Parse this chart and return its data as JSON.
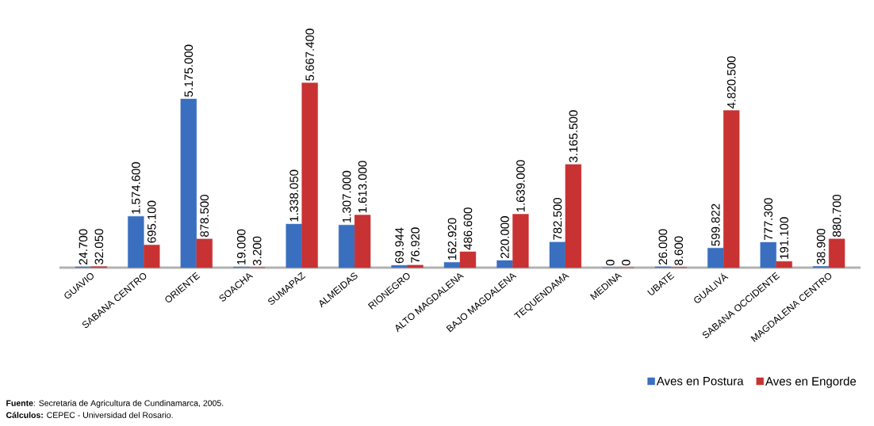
{
  "chart_data": {
    "type": "bar",
    "categories": [
      "GUAVIO",
      "SABANA CENTRO",
      "ORIENTE",
      "SOACHA",
      "SUMAPAZ",
      "ALMEIDAS",
      "RIONEGRO",
      "ALTO MAGDALENA",
      "BAJO MAGDALENA",
      "TEQUENDAMA",
      "MEDINA",
      "UBATE",
      "GUALIVÁ",
      "SABANA OCCIDENTE",
      "MAGDALENA CENTRO"
    ],
    "series": [
      {
        "name": "Aves en Postura",
        "color": "#3a6fbf",
        "values": [
          24700,
          1574600,
          5175000,
          19000,
          1338050,
          1307000,
          69944,
          162920,
          220000,
          782500,
          0,
          26000,
          599822,
          777300,
          38900
        ],
        "value_labels": [
          "24.700",
          "1.574.600",
          "5.175.000",
          "19.000",
          "1.338.050",
          "1.307.000",
          "69.944",
          "162.920",
          "220.000",
          "782.500",
          "0",
          "26.000",
          "599.822",
          "777.300",
          "38.900"
        ]
      },
      {
        "name": "Aves en Engorde",
        "color": "#c83232",
        "values": [
          32050,
          695100,
          878500,
          3200,
          5667400,
          1613000,
          76920,
          486600,
          1639000,
          3165500,
          0,
          8600,
          4820500,
          191100,
          880700
        ],
        "value_labels": [
          "32.050",
          "695.100",
          "878.500",
          "3.200",
          "5.667.400",
          "1.613.000",
          "76.920",
          "486.600",
          "1.639.000",
          "3.165.500",
          "0",
          "8.600",
          "4.820.500",
          "191.100",
          "880.700"
        ]
      }
    ],
    "legend": "bottom right",
    "annotations": [
      "**Fuente**: Secretaria de Agricultura de Cundinamarca, 2005.",
      "**Cálculos:** CEPEC - Universidad del Rosario."
    ]
  }
}
